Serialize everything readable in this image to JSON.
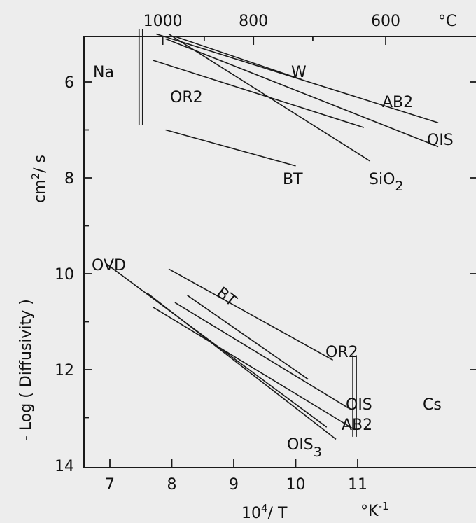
{
  "chart_data": {
    "type": "line",
    "title": "",
    "xlabel": "10⁴/ T",
    "xunit": "°K⁻¹",
    "ylabel": "- Log ( Diffusivity )",
    "yunit": "cm²/ s",
    "xlim": [
      6.7,
      12.3
    ],
    "ylim": [
      14,
      4.9
    ],
    "y_inverted": true,
    "x_ticks": [
      7,
      8,
      9,
      10,
      11
    ],
    "y_ticks": [
      6,
      8,
      10,
      12,
      14
    ],
    "top_axis": {
      "unit": "°C",
      "ticks": [
        {
          "label": "1000",
          "celsius": 1000
        },
        {
          "label": "800",
          "celsius": 800
        },
        {
          "label": "600",
          "celsius": 600
        }
      ]
    },
    "grid": false,
    "series": [
      {
        "name": "W",
        "element": "Na",
        "x": [
          8.05,
          10.1
        ],
        "y": [
          5.05,
          5.95
        ]
      },
      {
        "name": "AB2",
        "element": "Na",
        "x": [
          7.75,
          12.3
        ],
        "y": [
          5.0,
          6.85
        ]
      },
      {
        "name": "OIS",
        "element": "Na",
        "x": [
          7.9,
          12.3
        ],
        "y": [
          5.1,
          7.35
        ]
      },
      {
        "name": "SiO2",
        "element": "Na",
        "x": [
          7.95,
          11.2
        ],
        "y": [
          5.0,
          7.65
        ]
      },
      {
        "name": "OR2",
        "element": "Na",
        "x": [
          7.7,
          11.1
        ],
        "y": [
          5.55,
          6.95
        ]
      },
      {
        "name": "BT",
        "element": "Na",
        "x": [
          7.9,
          10.0
        ],
        "y": [
          7.0,
          7.75
        ]
      },
      {
        "name": "OVD",
        "element": "Cs",
        "x": [
          6.95,
          10.5
        ],
        "y": [
          9.8,
          13.2
        ]
      },
      {
        "name": "OIS3",
        "element": "Cs",
        "x": [
          7.6,
          10.65
        ],
        "y": [
          10.4,
          13.45
        ]
      },
      {
        "name": "AB2",
        "element": "Cs",
        "x": [
          7.7,
          10.95
        ],
        "y": [
          10.7,
          13.25
        ]
      },
      {
        "name": "OIS",
        "element": "Cs",
        "x": [
          8.05,
          10.85
        ],
        "y": [
          10.6,
          12.8
        ]
      },
      {
        "name": "BT",
        "element": "Cs",
        "x": [
          8.25,
          10.2
        ],
        "y": [
          10.45,
          12.2
        ]
      },
      {
        "name": "OR2",
        "element": "Cs",
        "x": [
          7.95,
          10.6
        ],
        "y": [
          9.9,
          11.8
        ]
      }
    ],
    "markers": [
      {
        "label": "Na",
        "x": 7.5,
        "y": [
          4.9,
          6.9
        ]
      },
      {
        "label": "Cs",
        "x": 10.95,
        "y": [
          11.7,
          13.4
        ]
      }
    ]
  },
  "labels": {
    "na": "Na",
    "cs": "Cs",
    "w": "W",
    "ab2_top": "AB2",
    "ois_top": "OIS",
    "or2_top": "OR2",
    "sio2_main": "SiO",
    "sio2_sub": "2",
    "bt_top": "BT",
    "ovd": "OVD",
    "bt_bottom": "BT",
    "or2_bottom": "OR2",
    "ois_bottom": "OIS",
    "ab2_bottom": "AB2",
    "ois3_main": "OIS",
    "ois3_sub": "3"
  },
  "axes": {
    "y_title_main": "- Log ( Diffusivity )",
    "y_unit_main": "cm",
    "y_unit_sup": "2",
    "y_unit_tail": "/ s",
    "x_title_main": "10",
    "x_title_sup": "4",
    "x_title_tail": "/ T",
    "x_unit_main": "°K",
    "x_unit_sup": "-1",
    "top_unit": "°C"
  }
}
